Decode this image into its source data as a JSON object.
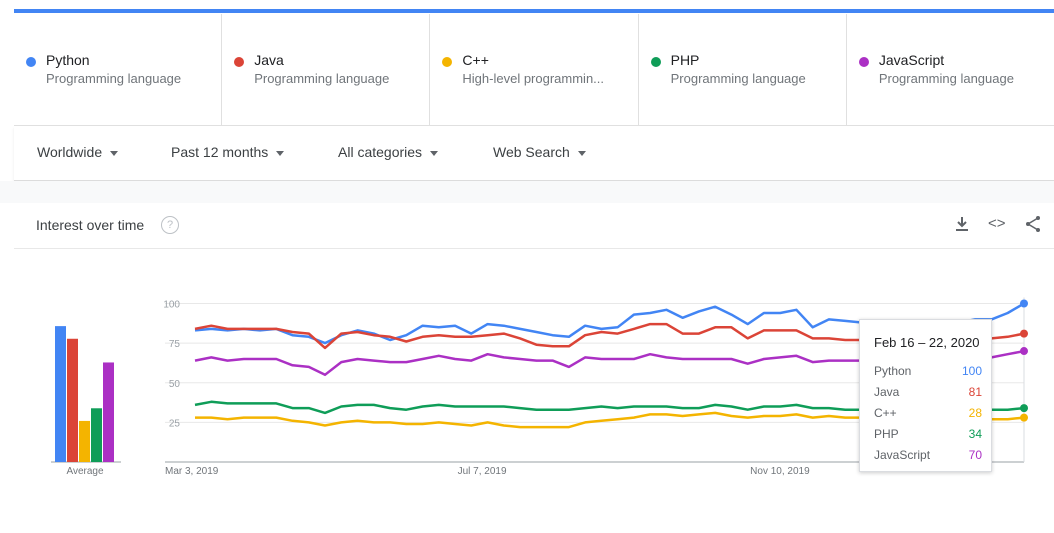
{
  "terms": [
    {
      "name": "Python",
      "sub": "Programming language",
      "color": "#4285f4"
    },
    {
      "name": "Java",
      "sub": "Programming language",
      "color": "#db4437"
    },
    {
      "name": "C++",
      "sub": "High-level programmin...",
      "color": "#f4b400"
    },
    {
      "name": "PHP",
      "sub": "Programming language",
      "color": "#0f9d58"
    },
    {
      "name": "JavaScript",
      "sub": "Programming language",
      "color": "#ab30c4"
    }
  ],
  "filters": {
    "region": "Worldwide",
    "time": "Past 12 months",
    "category": "All categories",
    "search": "Web Search"
  },
  "card": {
    "title": "Interest over time"
  },
  "icons": {
    "help": "help-icon",
    "download": "download-icon",
    "embed": "embed-icon",
    "share": "share-icon"
  },
  "tooltip": {
    "title": "Feb 16 – 22, 2020",
    "rows": [
      {
        "label": "Python",
        "value": "100"
      },
      {
        "label": "Java",
        "value": "81"
      },
      {
        "label": "C++",
        "value": "28"
      },
      {
        "label": "PHP",
        "value": "34"
      },
      {
        "label": "JavaScript",
        "value": "70"
      }
    ]
  },
  "chart_data": [
    {
      "type": "bar",
      "title": "",
      "xlabel": "Average",
      "categories": [
        "Python",
        "Java",
        "C++",
        "PHP",
        "JavaScript"
      ],
      "values": [
        86,
        78,
        26,
        34,
        63
      ],
      "colors": [
        "#4285f4",
        "#db4437",
        "#f4b400",
        "#0f9d58",
        "#ab30c4"
      ]
    },
    {
      "type": "line",
      "title": "",
      "ylim": [
        0,
        100
      ],
      "yticks": [
        25,
        50,
        75,
        100
      ],
      "xtick_labels": [
        {
          "label": "Mar 3, 2019",
          "index": 0
        },
        {
          "label": "Jul 7, 2019",
          "index": 18
        },
        {
          "label": "Nov 10, 2019",
          "index": 36
        }
      ],
      "num_points": 52,
      "grid": true,
      "series": [
        {
          "name": "Python",
          "color": "#4285f4",
          "values": [
            83,
            84,
            83,
            84,
            83,
            84,
            80,
            79,
            75,
            80,
            83,
            81,
            77,
            80,
            86,
            85,
            86,
            81,
            87,
            86,
            84,
            82,
            80,
            79,
            86,
            84,
            85,
            93,
            94,
            96,
            91,
            95,
            98,
            93,
            87,
            94,
            94,
            96,
            85,
            90,
            89,
            88,
            88,
            88,
            88,
            88,
            86,
            88,
            90,
            90,
            94,
            100
          ]
        },
        {
          "name": "Java",
          "color": "#db4437",
          "values": [
            84,
            86,
            84,
            84,
            84,
            84,
            82,
            81,
            72,
            81,
            82,
            80,
            79,
            76,
            79,
            80,
            79,
            79,
            80,
            81,
            78,
            74,
            73,
            73,
            80,
            82,
            81,
            84,
            87,
            87,
            81,
            81,
            85,
            85,
            78,
            83,
            83,
            83,
            78,
            78,
            77,
            77,
            78,
            77,
            77,
            77,
            76,
            77,
            78,
            78,
            79,
            81
          ]
        },
        {
          "name": "JavaScript",
          "color": "#ab30c4",
          "values": [
            64,
            66,
            64,
            65,
            65,
            65,
            61,
            60,
            55,
            63,
            65,
            64,
            63,
            63,
            65,
            67,
            65,
            64,
            68,
            66,
            65,
            64,
            64,
            60,
            66,
            65,
            65,
            65,
            68,
            66,
            65,
            65,
            65,
            65,
            62,
            65,
            66,
            67,
            63,
            64,
            64,
            64,
            64,
            64,
            64,
            64,
            64,
            64,
            65,
            66,
            68,
            70
          ]
        },
        {
          "name": "PHP",
          "color": "#0f9d58",
          "values": [
            36,
            38,
            37,
            37,
            37,
            37,
            34,
            34,
            31,
            35,
            36,
            36,
            34,
            33,
            35,
            36,
            35,
            35,
            35,
            35,
            34,
            33,
            33,
            33,
            34,
            35,
            34,
            35,
            35,
            35,
            34,
            34,
            36,
            35,
            33,
            35,
            35,
            36,
            34,
            34,
            33,
            33,
            33,
            33,
            33,
            33,
            33,
            33,
            33,
            33,
            33,
            34
          ]
        },
        {
          "name": "C++",
          "color": "#f4b400",
          "values": [
            28,
            28,
            27,
            28,
            28,
            28,
            26,
            25,
            23,
            25,
            26,
            25,
            25,
            24,
            24,
            25,
            24,
            23,
            25,
            23,
            22,
            22,
            22,
            22,
            25,
            26,
            27,
            28,
            30,
            30,
            29,
            30,
            31,
            29,
            28,
            29,
            29,
            30,
            28,
            29,
            28,
            28,
            28,
            27,
            27,
            27,
            27,
            27,
            27,
            27,
            27,
            28
          ]
        }
      ]
    }
  ]
}
